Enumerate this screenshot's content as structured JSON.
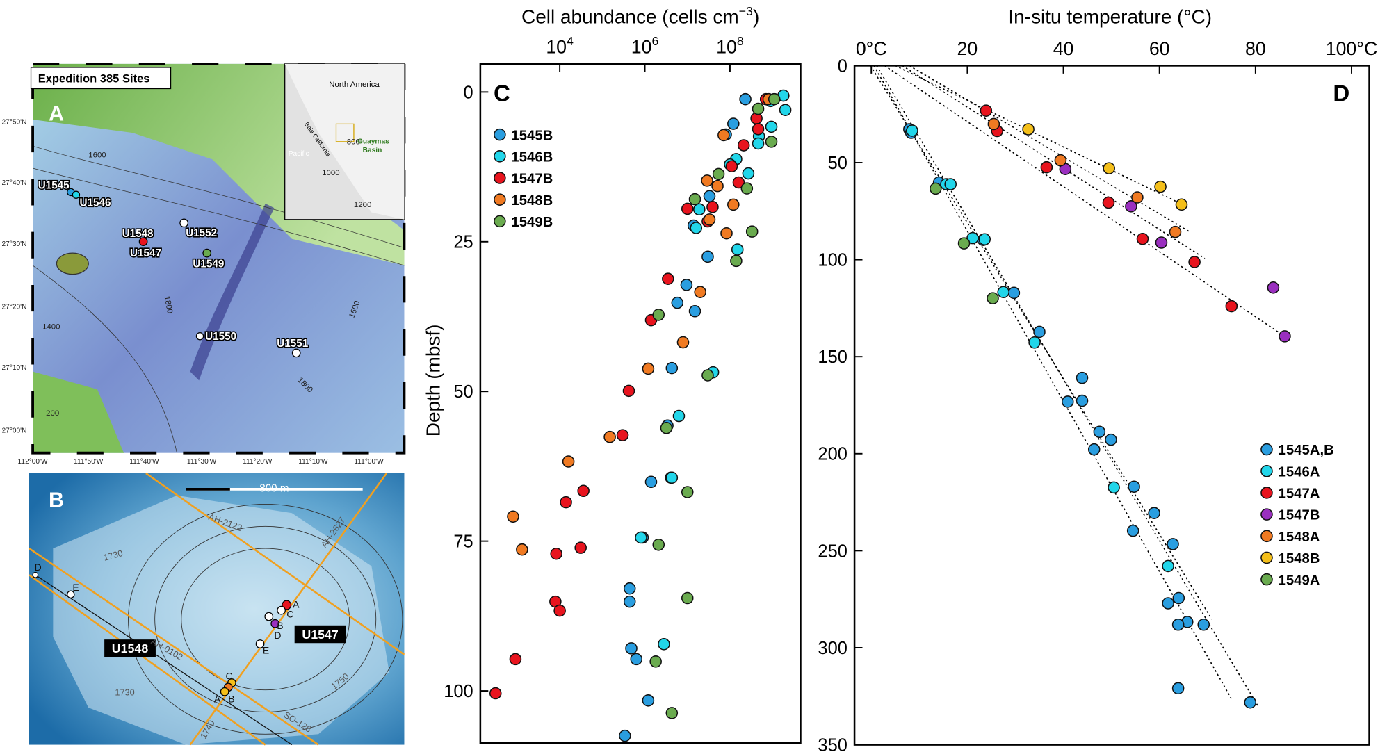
{
  "maps": [
    {
      "panel": "A",
      "title": "Expedition 385 Sites",
      "sites": [
        "U1545",
        "U1546",
        "U1548",
        "U1547",
        "U1552",
        "U1549",
        "U1550",
        "U1551"
      ],
      "contours": [
        "800",
        "1600",
        "1000",
        "1200",
        "1800",
        "1400",
        "1600",
        "1800",
        "200"
      ],
      "inset": [
        "North America",
        "Pacific",
        "Baja California",
        "Guaymas",
        "Basin"
      ],
      "lat_labels": [
        "27°50'N",
        "27°40'N",
        "27°30'N",
        "27°20'N",
        "27°10'N",
        "27°00'N"
      ],
      "lon_labels": [
        "112°00'W",
        "111°50'W",
        "111°40'W",
        "111°30'W",
        "111°20'W",
        "111°10'W",
        "111°00'W"
      ]
    },
    {
      "panel": "B",
      "scale": "800 m",
      "sites": [
        "U1548",
        "U1547"
      ],
      "lines": [
        "AH-2122",
        "AH-2627",
        "AH-0102",
        "SO-128"
      ],
      "contours": [
        "1730",
        "1730",
        "1750",
        "1740"
      ],
      "holes": [
        "D",
        "E",
        "A",
        "C",
        "B",
        "D",
        "E",
        "C",
        "A",
        "B"
      ]
    }
  ],
  "chart_data": [
    {
      "type": "scatter",
      "panel": "C",
      "x_label": "Cell abundance (cells cm",
      "x_label_exp": "−3",
      "x_label_end": ")",
      "y_label": "Depth (mbsf)",
      "xscale": "log",
      "xlim": [
        136,
        4550000000
      ],
      "xticks": [
        {
          "value": 10000,
          "label": "10",
          "exp": "4"
        },
        {
          "value": 1000000,
          "label": "10",
          "exp": "6"
        },
        {
          "value": 100000000,
          "label": "10",
          "exp": "8"
        }
      ],
      "ylim": [
        108.7,
        -4.7
      ],
      "yticks": [
        0,
        25,
        50,
        75,
        100
      ],
      "legend": "upper left",
      "series": [
        {
          "name": "1545B",
          "color": "#2a9ee0",
          "x": [
            230000000,
            120000000,
            80000000,
            33000000,
            14000000,
            30000000,
            9500000,
            5800000,
            15000000,
            4300000,
            3400000,
            1400000,
            4100000,
            890000,
            440000,
            440000,
            480000,
            630000,
            1200000,
            340000
          ],
          "values": [
            1.2,
            5.3,
            7.1,
            17.4,
            22.3,
            27.5,
            32.2,
            35.2,
            36.6,
            46.1,
            55.7,
            65.1,
            64.4,
            74.4,
            82.9,
            85.1,
            92.9,
            94.7,
            101.6,
            107.5
          ]
        },
        {
          "name": "1546B",
          "color": "#22d6ea",
          "x": [
            1800000000,
            2000000000,
            900000000,
            940000000,
            480000000,
            460000000,
            140000000,
            270000000,
            100000000,
            19000000,
            16000000,
            150000000,
            40000000,
            6300000,
            4300000,
            810000,
            2800000
          ],
          "values": [
            0.6,
            3.0,
            1.5,
            5.8,
            7.4,
            8.6,
            11.2,
            13.6,
            12.1,
            19.6,
            22.7,
            26.3,
            46.8,
            54.1,
            64.4,
            74.4,
            92.2
          ]
        },
        {
          "name": "1547B",
          "color": "#e8141e",
          "x": [
            700000000,
            420000000,
            460000000,
            210000000,
            110000000,
            160000000,
            39000000,
            10000000,
            30000000,
            3500000,
            1400000,
            420000,
            300000,
            36000,
            14000,
            31000,
            8300,
            7900,
            10000,
            910,
            310
          ],
          "values": [
            1.2,
            4.4,
            6.2,
            8.9,
            12.4,
            15.1,
            19.2,
            19.5,
            21.6,
            31.2,
            38.1,
            49.9,
            57.3,
            66.6,
            68.5,
            76.1,
            77.1,
            85.1,
            86.6,
            94.7,
            100.4
          ]
        },
        {
          "name": "1548B",
          "color": "#f07a22",
          "x": [
            810000000,
            71000000,
            29000000,
            51000000,
            120000000,
            33000000,
            83000000,
            20000000,
            7900000,
            1200000,
            150000,
            16000,
            800,
            1300
          ],
          "values": [
            1.2,
            7.2,
            14.8,
            15.7,
            18.8,
            21.3,
            23.6,
            33.4,
            41.8,
            46.2,
            57.6,
            61.7,
            70.9,
            76.4
          ]
        },
        {
          "name": "1549B",
          "color": "#6aab4f",
          "x": [
            1100000000,
            460000000,
            940000000,
            250000000,
            15000000,
            54000000,
            330000000,
            140000000,
            2100000,
            30000000,
            3200000,
            10000000,
            2100000,
            10000000,
            1800000,
            4300000
          ],
          "values": [
            1.2,
            2.8,
            8.3,
            16.1,
            17.9,
            13.7,
            23.3,
            28.2,
            37.2,
            47.3,
            56.1,
            66.8,
            75.6,
            84.5,
            95.1,
            103.7
          ]
        }
      ]
    },
    {
      "type": "scatter",
      "panel": "D",
      "x_label": "In-situ temperature (°C)",
      "xlim": [
        -3.5,
        103.7
      ],
      "xticks": [
        {
          "value": 0,
          "label": "0°C"
        },
        20,
        40,
        60,
        80,
        {
          "value": 100,
          "label": "100°C"
        }
      ],
      "ylim": [
        350,
        0
      ],
      "yticks": [
        0,
        50,
        100,
        150,
        200,
        250,
        300,
        350
      ],
      "legend": "lower right",
      "series": [
        {
          "name": "1545A,B",
          "color": "#2a9ee0",
          "x": [
            7.9,
            8.3,
            14.1,
            23.3,
            29.7,
            35.0,
            43.9,
            40.9,
            43.9,
            47.5,
            49.9,
            46.4,
            54.7,
            58.9,
            54.5,
            62.8,
            64.0,
            61.8,
            65.8,
            63.9,
            69.2,
            63.9,
            78.9
          ],
          "values": [
            32.8,
            34.6,
            60.2,
            89.8,
            117.1,
            137.2,
            160.9,
            173.2,
            172.7,
            188.7,
            192.8,
            197.8,
            217,
            230.6,
            239.7,
            246.6,
            274.4,
            277.1,
            286.7,
            288.1,
            288.1,
            320.9,
            328.2
          ]
        },
        {
          "name": "1546A",
          "color": "#22d6ea",
          "x": [
            8.5,
            15.6,
            16.5,
            21.1,
            23.6,
            27.5,
            34.0,
            50.5,
            61.8
          ],
          "values": [
            33.5,
            61.1,
            61.1,
            88.9,
            89.5,
            116.7,
            142.7,
            217.4,
            257.9
          ]
        },
        {
          "name": "1547A",
          "color": "#e8141e",
          "x": [
            23.9,
            26.2,
            36.5,
            49.4,
            56.5,
            67.3,
            75.0
          ],
          "values": [
            23.2,
            33.7,
            52.4,
            70.6,
            89.3,
            101.2,
            124.0
          ]
        },
        {
          "name": "1547B",
          "color": "#9a2fbf",
          "x": [
            40.4,
            54.1,
            60.4,
            83.7,
            86.1
          ],
          "values": [
            53.3,
            72.5,
            91.2,
            114.4,
            139.5
          ]
        },
        {
          "name": "1548A",
          "color": "#f07a22",
          "x": [
            25.5,
            39.4,
            55.4,
            63.3
          ],
          "values": [
            30.1,
            48.8,
            67.9,
            85.7
          ]
        },
        {
          "name": "1548B",
          "color": "#f4bf1a",
          "x": [
            32.7,
            49.5,
            60.2,
            64.6
          ],
          "values": [
            32.8,
            52.9,
            62.4,
            71.6
          ]
        },
        {
          "name": "1549A",
          "color": "#6aab4f",
          "x": [
            13.4,
            19.3,
            25.3
          ],
          "values": [
            63.4,
            91.6,
            119.9
          ]
        }
      ]
    }
  ]
}
